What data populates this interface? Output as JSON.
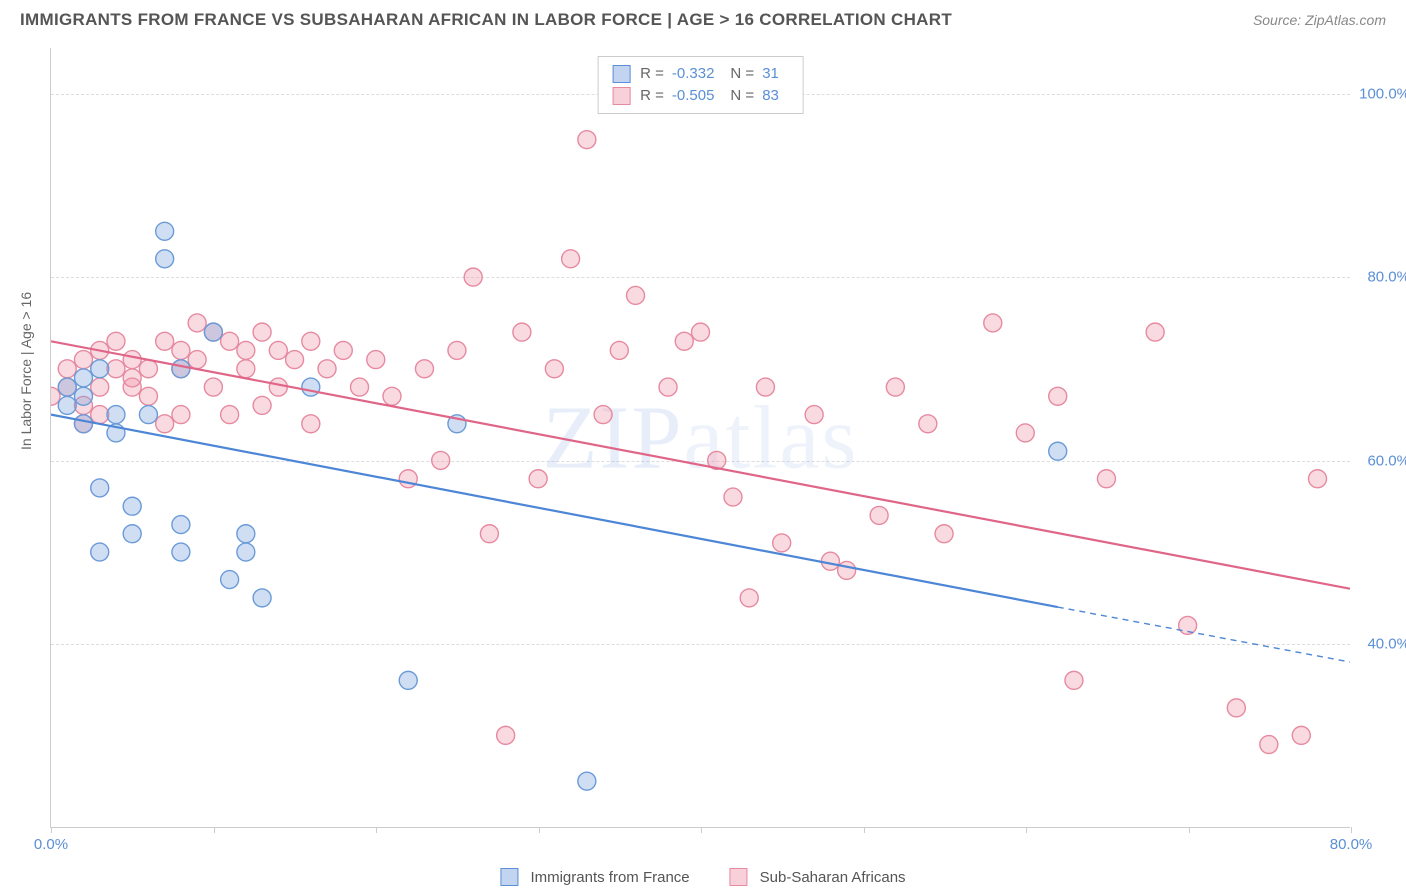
{
  "title": "IMMIGRANTS FROM FRANCE VS SUBSAHARAN AFRICAN IN LABOR FORCE | AGE > 16 CORRELATION CHART",
  "source": "Source: ZipAtlas.com",
  "ylabel": "In Labor Force | Age > 16",
  "watermark": {
    "part1": "ZIP",
    "part2": "atlas"
  },
  "chart": {
    "type": "scatter-with-regression",
    "x_domain": [
      0,
      80
    ],
    "y_domain": [
      20,
      105
    ],
    "xticks": [
      {
        "v": 0,
        "label": "0.0%"
      },
      {
        "v": 10,
        "label": ""
      },
      {
        "v": 20,
        "label": ""
      },
      {
        "v": 30,
        "label": ""
      },
      {
        "v": 40,
        "label": ""
      },
      {
        "v": 50,
        "label": ""
      },
      {
        "v": 60,
        "label": ""
      },
      {
        "v": 70,
        "label": ""
      },
      {
        "v": 80,
        "label": "80.0%"
      }
    ],
    "yticks": [
      {
        "v": 40,
        "label": "40.0%"
      },
      {
        "v": 60,
        "label": "60.0%"
      },
      {
        "v": 80,
        "label": "80.0%"
      },
      {
        "v": 100,
        "label": "100.0%"
      }
    ],
    "grid_color": "#dddddd",
    "background_color": "#ffffff",
    "marker_radius": 9,
    "marker_stroke_width": 1.4,
    "line_width": 2.2,
    "series": [
      {
        "name": "Immigrants from France",
        "color_fill": "rgba(120,160,220,0.35)",
        "color_stroke": "#6a9bd8",
        "line_color": "#4d86d6",
        "R": "-0.332",
        "N": "31",
        "regression": {
          "x1": 0,
          "y1": 65,
          "x2": 62,
          "y2": 44,
          "dash_x2": 80,
          "dash_y2": 38
        },
        "points": [
          [
            1,
            68
          ],
          [
            1,
            66
          ],
          [
            2,
            67
          ],
          [
            2,
            69
          ],
          [
            2,
            64
          ],
          [
            3,
            70
          ],
          [
            3,
            57
          ],
          [
            3,
            50
          ],
          [
            4,
            65
          ],
          [
            4,
            63
          ],
          [
            5,
            55
          ],
          [
            5,
            52
          ],
          [
            6,
            65
          ],
          [
            7,
            85
          ],
          [
            7,
            82
          ],
          [
            8,
            70
          ],
          [
            8,
            53
          ],
          [
            8,
            50
          ],
          [
            10,
            74
          ],
          [
            11,
            47
          ],
          [
            12,
            52
          ],
          [
            12,
            50
          ],
          [
            13,
            45
          ],
          [
            16,
            68
          ],
          [
            22,
            36
          ],
          [
            25,
            64
          ],
          [
            33,
            25
          ],
          [
            62,
            61
          ]
        ]
      },
      {
        "name": "Sub-Saharan Africans",
        "color_fill": "rgba(240,150,170,0.35)",
        "color_stroke": "#e68aa0",
        "line_color": "#e06688",
        "R": "-0.505",
        "N": "83",
        "regression": {
          "x1": 0,
          "y1": 73,
          "x2": 80,
          "y2": 46
        },
        "points": [
          [
            0,
            67
          ],
          [
            1,
            68
          ],
          [
            1,
            70
          ],
          [
            2,
            66
          ],
          [
            2,
            71
          ],
          [
            2,
            64
          ],
          [
            3,
            72
          ],
          [
            3,
            68
          ],
          [
            3,
            65
          ],
          [
            4,
            70
          ],
          [
            4,
            73
          ],
          [
            5,
            71
          ],
          [
            5,
            68
          ],
          [
            5,
            69
          ],
          [
            6,
            70
          ],
          [
            6,
            67
          ],
          [
            7,
            73
          ],
          [
            7,
            64
          ],
          [
            8,
            72
          ],
          [
            8,
            70
          ],
          [
            8,
            65
          ],
          [
            9,
            75
          ],
          [
            9,
            71
          ],
          [
            10,
            74
          ],
          [
            10,
            68
          ],
          [
            11,
            73
          ],
          [
            11,
            65
          ],
          [
            12,
            72
          ],
          [
            12,
            70
          ],
          [
            13,
            74
          ],
          [
            13,
            66
          ],
          [
            14,
            72
          ],
          [
            14,
            68
          ],
          [
            15,
            71
          ],
          [
            16,
            73
          ],
          [
            16,
            64
          ],
          [
            17,
            70
          ],
          [
            18,
            72
          ],
          [
            19,
            68
          ],
          [
            20,
            71
          ],
          [
            21,
            67
          ],
          [
            22,
            58
          ],
          [
            23,
            70
          ],
          [
            24,
            60
          ],
          [
            25,
            72
          ],
          [
            26,
            80
          ],
          [
            27,
            52
          ],
          [
            28,
            30
          ],
          [
            29,
            74
          ],
          [
            30,
            58
          ],
          [
            31,
            70
          ],
          [
            32,
            82
          ],
          [
            33,
            95
          ],
          [
            34,
            65
          ],
          [
            35,
            72
          ],
          [
            36,
            78
          ],
          [
            38,
            68
          ],
          [
            39,
            73
          ],
          [
            40,
            74
          ],
          [
            41,
            60
          ],
          [
            42,
            56
          ],
          [
            43,
            45
          ],
          [
            44,
            68
          ],
          [
            45,
            51
          ],
          [
            47,
            65
          ],
          [
            48,
            49
          ],
          [
            49,
            48
          ],
          [
            51,
            54
          ],
          [
            52,
            68
          ],
          [
            54,
            64
          ],
          [
            55,
            52
          ],
          [
            58,
            75
          ],
          [
            60,
            63
          ],
          [
            62,
            67
          ],
          [
            63,
            36
          ],
          [
            65,
            58
          ],
          [
            68,
            74
          ],
          [
            70,
            42
          ],
          [
            73,
            33
          ],
          [
            75,
            29
          ],
          [
            77,
            30
          ],
          [
            78,
            58
          ]
        ]
      }
    ]
  },
  "legend_top": [
    {
      "swatch": "blue",
      "r_label": "R =",
      "r_val": "-0.332",
      "n_label": "N =",
      "n_val": "31"
    },
    {
      "swatch": "pink",
      "r_label": "R =",
      "r_val": "-0.505",
      "n_label": "N =",
      "n_val": "83"
    }
  ],
  "legend_bottom": [
    {
      "swatch": "blue",
      "label": "Immigrants from France"
    },
    {
      "swatch": "pink",
      "label": "Sub-Saharan Africans"
    }
  ]
}
